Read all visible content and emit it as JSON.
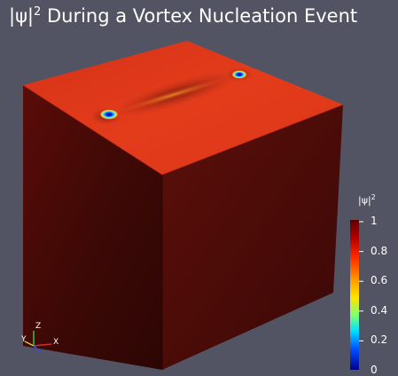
{
  "title": {
    "prefix": "|ψ|",
    "exponent": "2",
    "suffix": " During a Vortex Nucleation Event"
  },
  "colorbar": {
    "title_base": "|ψ|",
    "title_exp": "2",
    "ticks": [
      {
        "label": "1",
        "value": 1.0
      },
      {
        "label": "0.8",
        "value": 0.8
      },
      {
        "label": "0.6",
        "value": 0.6
      },
      {
        "label": "0.4",
        "value": 0.4
      },
      {
        "label": "0.2",
        "value": 0.2
      },
      {
        "label": "0",
        "value": 0.0
      }
    ]
  },
  "axes_widget": {
    "x_label": "X",
    "y_label": "Y",
    "z_label": "Z"
  },
  "colors": {
    "background": "#525463",
    "top_face": "#e0391a",
    "front_left_face": "#3a0807",
    "front_right_face": "#500d09",
    "vortex_core": "#0a2bff"
  }
}
